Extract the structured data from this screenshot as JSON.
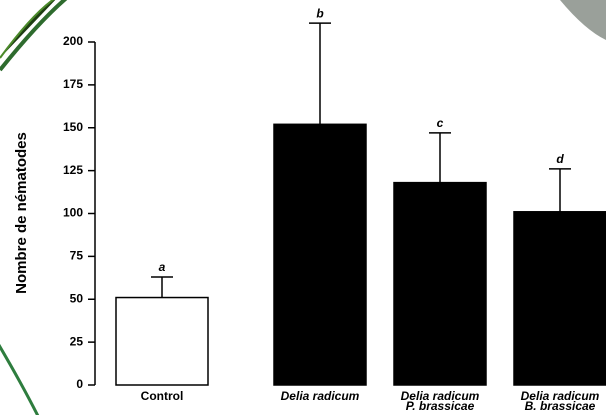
{
  "chart_data": {
    "type": "bar",
    "y_label": "Nombre de nématodes",
    "categories": [
      [
        "Control"
      ],
      [
        "Delia radicum"
      ],
      [
        "Delia radicum",
        "P. brassicae"
      ],
      [
        "Delia radicum",
        "B. brassicae"
      ]
    ],
    "values": [
      51,
      152,
      118,
      101
    ],
    "errors": [
      12,
      59,
      29,
      25
    ],
    "annotations": [
      "a",
      "b",
      "c",
      "d"
    ],
    "colors": [
      "#ffffff",
      "#000000",
      "#000000",
      "#000000"
    ],
    "ylim": [
      0,
      200
    ],
    "yticks": [
      0,
      25,
      50,
      75,
      100,
      125,
      150,
      175,
      200
    ],
    "grid": false
  }
}
